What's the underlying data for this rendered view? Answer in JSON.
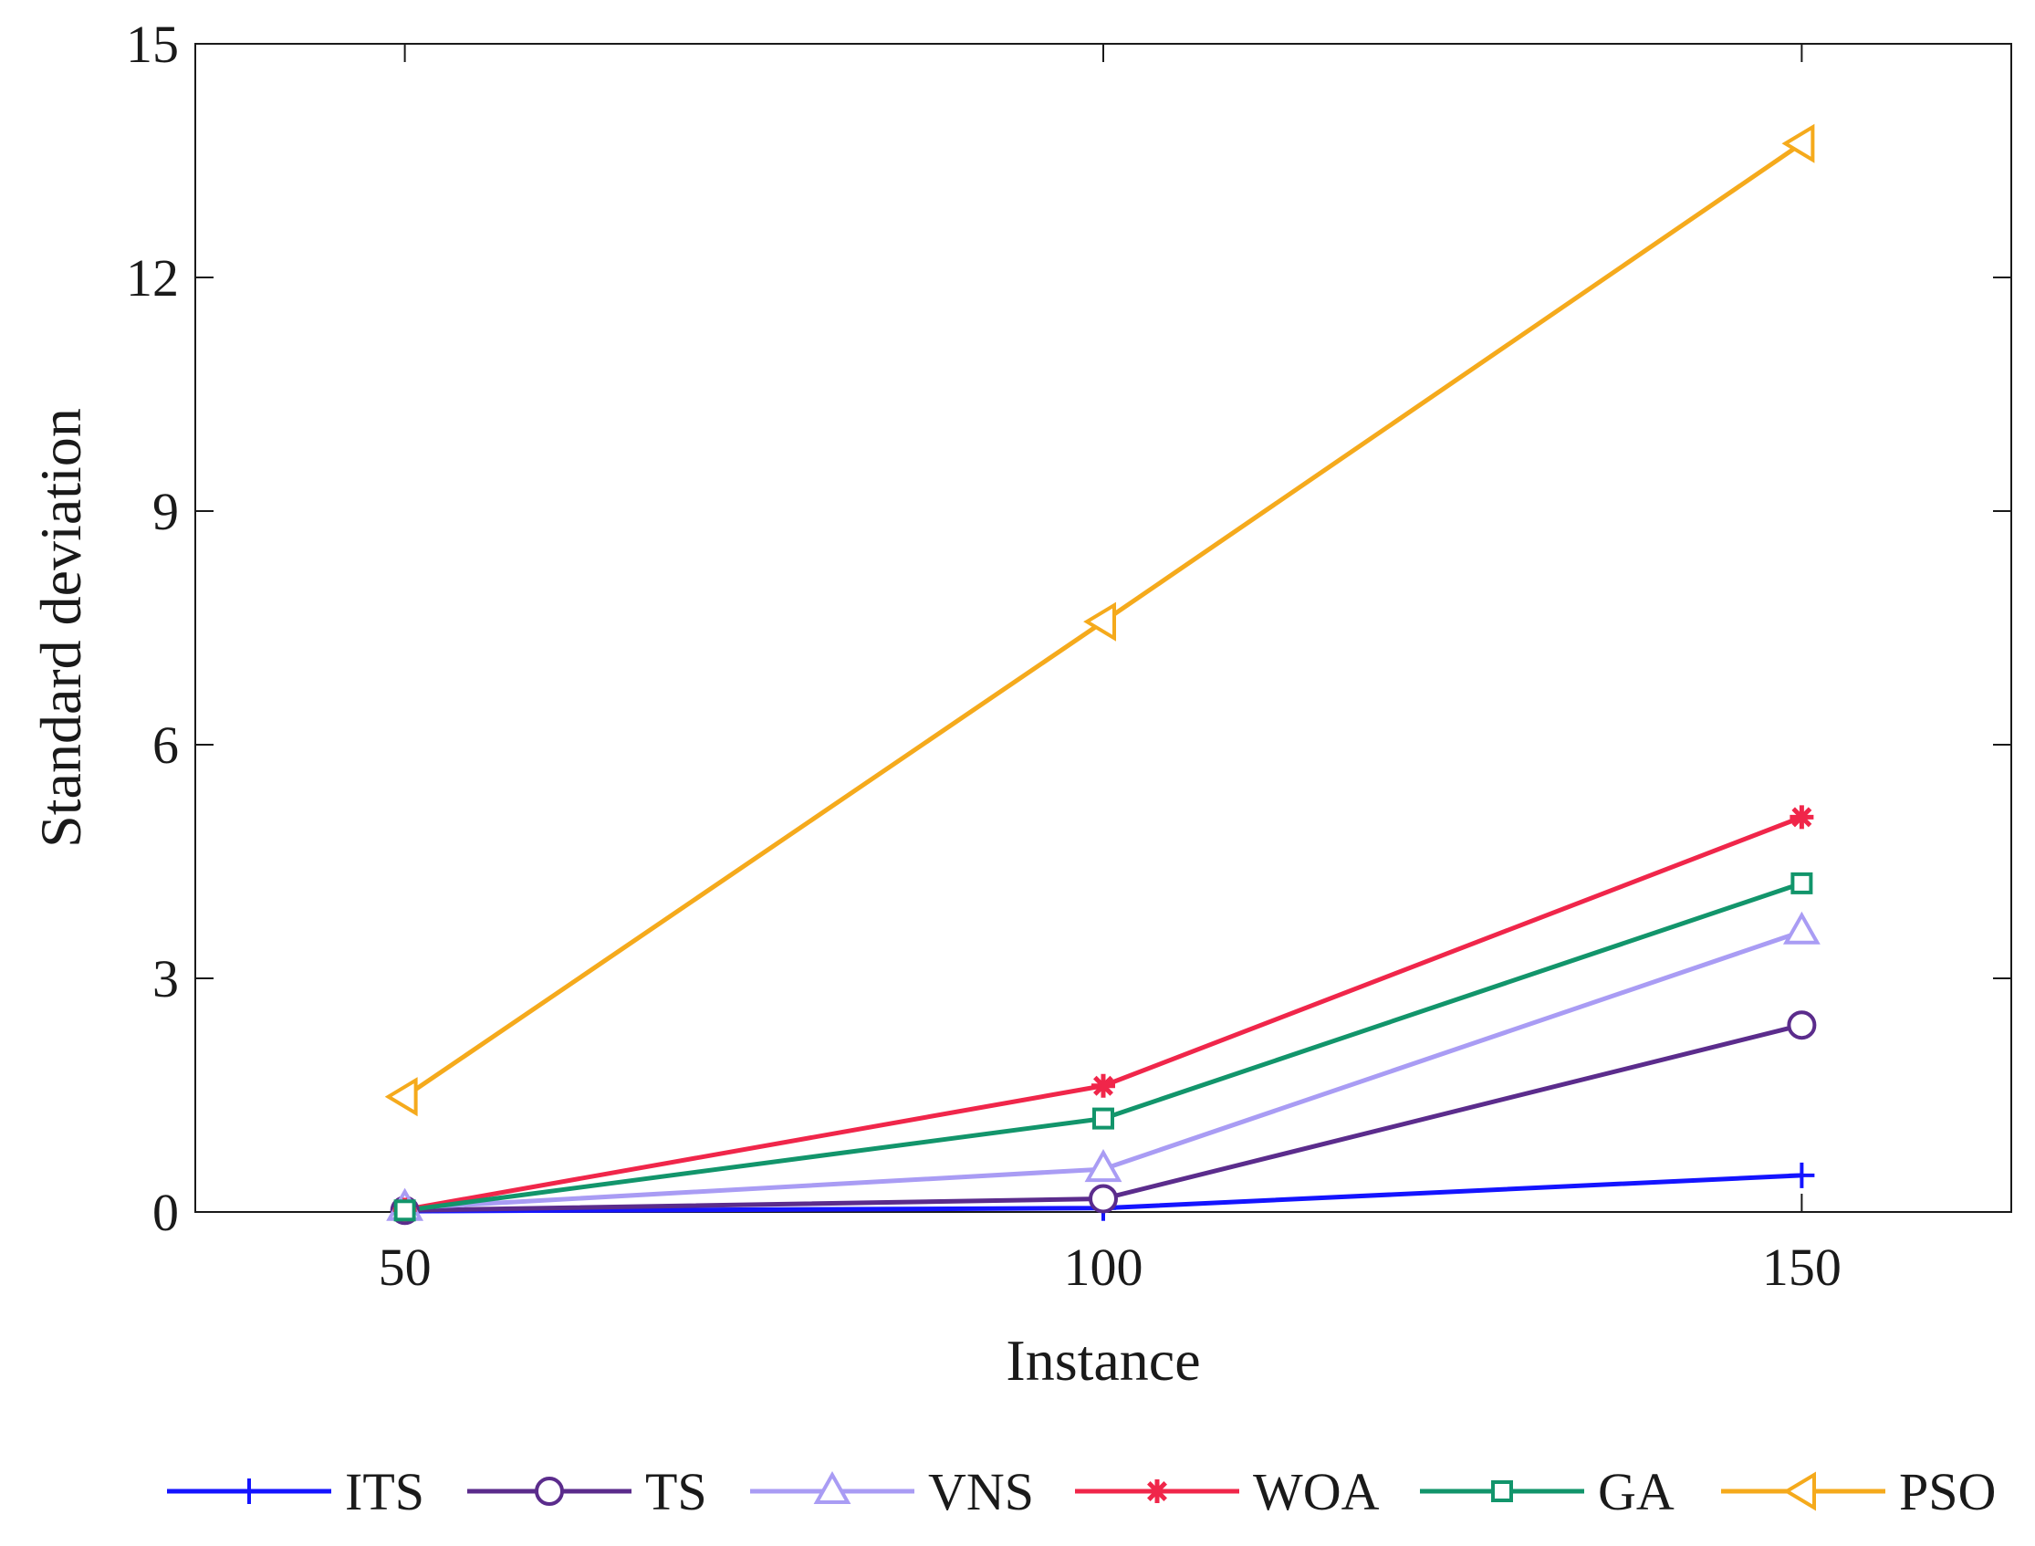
{
  "chart_data": {
    "type": "line",
    "title": "",
    "xlabel": "Instance",
    "ylabel": "Standard deviation",
    "x": [
      50,
      100,
      150
    ],
    "xlim": [
      35,
      165
    ],
    "ylim": [
      0,
      15
    ],
    "xticks": [
      50,
      100,
      150
    ],
    "yticks": [
      0,
      3,
      6,
      9,
      12,
      15
    ],
    "grid": false,
    "legend_position": "bottom",
    "series": [
      {
        "name": "ITS",
        "values": [
          0.01,
          0.05,
          0.47
        ],
        "color": "#1414ff",
        "marker": "plus"
      },
      {
        "name": "TS",
        "values": [
          0.02,
          0.17,
          2.4
        ],
        "color": "#5b2c8c",
        "marker": "circle"
      },
      {
        "name": "VNS",
        "values": [
          0.05,
          0.55,
          3.6
        ],
        "color": "#a99cf4",
        "marker": "triangle-up"
      },
      {
        "name": "WOA",
        "values": [
          0.03,
          1.62,
          5.07
        ],
        "color": "#f0264a",
        "marker": "asterisk"
      },
      {
        "name": "GA",
        "values": [
          0.02,
          1.2,
          4.22
        ],
        "color": "#12956b",
        "marker": "square"
      },
      {
        "name": "PSO",
        "values": [
          1.48,
          7.58,
          13.72
        ],
        "color": "#f5aa1c",
        "marker": "triangle-left"
      }
    ]
  }
}
